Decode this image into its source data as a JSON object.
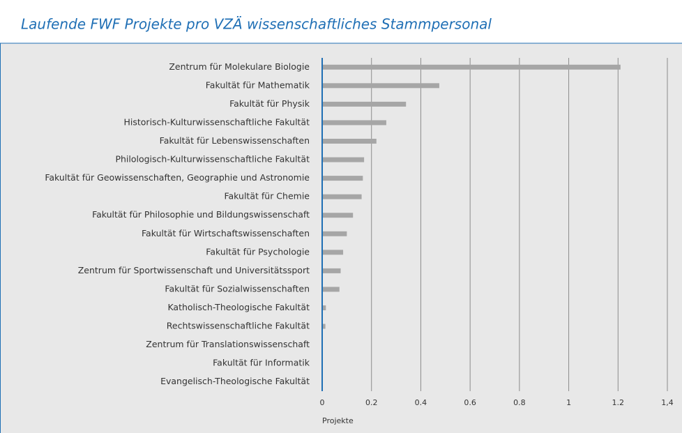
{
  "chart_data": {
    "type": "bar",
    "orientation": "horizontal",
    "title": "Laufende FWF Projekte pro VZÄ wissenschaftliches Stammpersonal",
    "categories": [
      "Zentrum für Molekulare Biologie",
      "Fakultät für Mathematik",
      "Fakultät für Physik",
      "Historisch-Kulturwissenschaftliche Fakultät",
      "Fakultät für Lebenswissenschaften",
      "Philologisch-Kulturwissenschaftliche Fakultät",
      "Fakultät für Geowissenschaften, Geographie und Astronomie",
      "Fakultät für Chemie",
      "Fakultät für Philosophie und Bildungswissenschaft",
      "Fakultät für Wirtschaftswissenschaften",
      "Fakultät für Psychologie",
      "Zentrum für Sportwissenschaft und Universitätssport",
      "Fakultät für Sozialwissenschaften",
      "Katholisch-Theologische Fakultät",
      "Rechtswissenschaftliche Fakultät",
      "Zentrum für Translationswissenschaft",
      "Fakultät für Informatik",
      "Evangelisch-Theologische Fakultät"
    ],
    "values": [
      1.21,
      0.475,
      0.34,
      0.26,
      0.22,
      0.17,
      0.165,
      0.16,
      0.125,
      0.1,
      0.085,
      0.075,
      0.07,
      0.015,
      0.013,
      0,
      0,
      0
    ],
    "color": "#a6a6a6",
    "xlim": [
      0,
      1.4
    ],
    "xticks": [
      0,
      0.2,
      0.4,
      0.6,
      0.8,
      1,
      1.2,
      {
        "value": 1.4,
        "label": "1,4"
      }
    ],
    "x_label": "Projekte",
    "grid": true
  }
}
